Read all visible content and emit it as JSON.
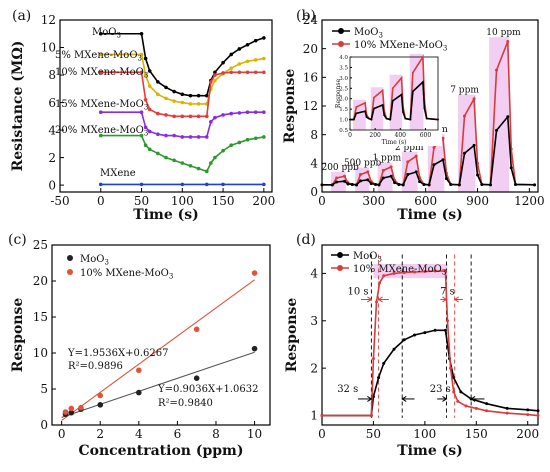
{
  "chart_data": [
    {
      "panel": "(a)",
      "type": "line",
      "xlabel": "Time (s)",
      "ylabel": "Resistance (MΩ)",
      "xlim": [
        -50,
        210
      ],
      "ylim": [
        -0.5,
        12
      ],
      "xticks": [
        -50,
        0,
        50,
        100,
        150,
        200
      ],
      "yticks": [
        0,
        2,
        4,
        6,
        8,
        10,
        12
      ],
      "annotations": [
        "MoO3",
        "5% MXene-MoO3",
        "10% MXene-MoO3",
        "15% MXene-MoO3",
        "20% MXene-MoO3",
        "MXene"
      ],
      "series": [
        {
          "name": "MoO3",
          "color": "#000000",
          "x": [
            0,
            50,
            55,
            60,
            70,
            80,
            90,
            100,
            110,
            120,
            130,
            135,
            140,
            150,
            160,
            170,
            180,
            190,
            200
          ],
          "y": [
            11,
            11,
            9.2,
            8.3,
            7.5,
            7.1,
            6.8,
            6.6,
            6.5,
            6.5,
            6.5,
            7.6,
            8.2,
            8.9,
            9.5,
            9.9,
            10.2,
            10.5,
            10.7
          ]
        },
        {
          "name": "5% MXene-MoO3",
          "color": "#d9b400",
          "x": [
            0,
            50,
            55,
            60,
            70,
            80,
            90,
            100,
            110,
            120,
            130,
            135,
            140,
            150,
            160,
            170,
            180,
            190,
            200
          ],
          "y": [
            9.5,
            9.5,
            8.0,
            7.2,
            6.6,
            6.3,
            6.1,
            6.0,
            5.9,
            5.9,
            5.9,
            7.0,
            7.6,
            8.1,
            8.5,
            8.8,
            9.0,
            9.1,
            9.2
          ]
        },
        {
          "name": "10% MXene-MoO3",
          "color": "#e53b3b",
          "x": [
            0,
            50,
            55,
            60,
            70,
            80,
            90,
            100,
            110,
            120,
            130,
            135,
            140,
            150,
            160,
            170,
            180,
            190,
            200
          ],
          "y": [
            8.2,
            8.2,
            6.2,
            5.5,
            5.2,
            5.1,
            5.0,
            5.0,
            5.0,
            5.0,
            5.0,
            7.5,
            8.0,
            8.15,
            8.2,
            8.2,
            8.2,
            8.2,
            8.2
          ]
        },
        {
          "name": "15% MXene-MoO3",
          "color": "#8a2be2",
          "x": [
            0,
            50,
            55,
            60,
            70,
            80,
            90,
            100,
            110,
            120,
            130,
            135,
            140,
            150,
            160,
            170,
            180,
            190,
            200
          ],
          "y": [
            5.3,
            5.3,
            4.2,
            3.9,
            3.7,
            3.6,
            3.6,
            3.5,
            3.5,
            3.5,
            3.5,
            4.6,
            4.9,
            5.1,
            5.2,
            5.25,
            5.3,
            5.3,
            5.3
          ]
        },
        {
          "name": "20% MXene-MoO3",
          "color": "#2b9a2b",
          "x": [
            0,
            50,
            55,
            60,
            70,
            80,
            90,
            100,
            110,
            120,
            130,
            135,
            140,
            150,
            160,
            170,
            180,
            190,
            200
          ],
          "y": [
            3.6,
            3.6,
            2.9,
            2.6,
            2.3,
            2.0,
            1.8,
            1.6,
            1.4,
            1.2,
            1.0,
            1.6,
            2.0,
            2.5,
            2.9,
            3.1,
            3.3,
            3.4,
            3.5
          ]
        },
        {
          "name": "MXene",
          "color": "#1f3fd6",
          "x": [
            0,
            50,
            100,
            130,
            150,
            200
          ],
          "y": [
            0.05,
            0.05,
            0.05,
            0.05,
            0.05,
            0.05
          ]
        }
      ]
    },
    {
      "panel": "(b)",
      "type": "line",
      "xlabel": "Time (s)",
      "ylabel": "Response",
      "xlim": [
        0,
        1250
      ],
      "ylim": [
        0,
        24
      ],
      "xticks": [
        0,
        300,
        600,
        900,
        1200
      ],
      "yticks": [
        0,
        4,
        8,
        12,
        16,
        20,
        24
      ],
      "legend_placement": "top-left",
      "legend": [
        "MoO3",
        "10% MXene-MoO3"
      ],
      "pulse_labels": [
        {
          "label": "200 ppb",
          "x": 105
        },
        {
          "label": "500 ppb",
          "x": 235
        },
        {
          "label": "1 ppm",
          "x": 375
        },
        {
          "label": "2 ppm",
          "x": 505
        },
        {
          "label": "4 ppm",
          "x": 645
        },
        {
          "label": "7 ppm",
          "x": 825
        },
        {
          "label": "10 ppm",
          "x": 1050
        }
      ],
      "pulses": [
        {
          "start": 60,
          "end": 130,
          "moo3": 1.5,
          "mxene": 2.2
        },
        {
          "start": 200,
          "end": 265,
          "moo3": 1.7,
          "mxene": 2.8
        },
        {
          "start": 330,
          "end": 400,
          "moo3": 2.2,
          "mxene": 3.5
        },
        {
          "start": 470,
          "end": 545,
          "moo3": 2.8,
          "mxene": 5.0
        },
        {
          "start": 620,
          "end": 700,
          "moo3": 4.5,
          "mxene": 7.5
        },
        {
          "start": 795,
          "end": 880,
          "moo3": 6.5,
          "mxene": 13.0
        },
        {
          "start": 975,
          "end": 1075,
          "moo3": 10.5,
          "mxene": 21.0
        }
      ],
      "inset": {
        "xlabel": "Time (s)",
        "ylabel": "Response",
        "xlim": [
          0,
          700
        ],
        "ylim": [
          0.5,
          4.0
        ],
        "xticks": [
          0,
          200,
          400,
          600
        ],
        "yticks": [
          0.5,
          1.0,
          1.5,
          2.0,
          2.5,
          3.0,
          3.5,
          4.0
        ],
        "xticklabels": [
          "0",
          "200",
          "400",
          "600"
        ],
        "yticklabels": [
          "0.5",
          "1.0",
          "1.5",
          "2.0",
          "2.5",
          "3.0",
          "3.5",
          "4.0"
        ],
        "pulses": [
          {
            "start": 30,
            "end": 120,
            "moo3": 1.4,
            "mxene": 1.8
          },
          {
            "start": 170,
            "end": 260,
            "moo3": 1.7,
            "mxene": 2.4
          },
          {
            "start": 320,
            "end": 410,
            "moo3": 2.2,
            "mxene": 3.0
          },
          {
            "start": 480,
            "end": 580,
            "moo3": 2.8,
            "mxene": 4.0
          }
        ]
      }
    },
    {
      "panel": "(c)",
      "type": "scatter",
      "xlabel": "Concentration (ppm)",
      "ylabel": "Response",
      "xlim": [
        -0.5,
        10.8
      ],
      "ylim": [
        0,
        25
      ],
      "xticks": [
        0,
        2,
        4,
        6,
        8,
        10
      ],
      "yticks": [
        0,
        5,
        10,
        15,
        20,
        25
      ],
      "legend_placement": "top-left",
      "series": [
        {
          "name": "MoO3",
          "color": "#222222",
          "x": [
            0.2,
            0.5,
            1,
            2,
            4,
            7,
            10
          ],
          "y": [
            1.5,
            1.7,
            2.2,
            2.8,
            4.5,
            6.5,
            10.6
          ]
        },
        {
          "name": "10% MXene-MoO3",
          "color": "#e0533b",
          "x": [
            0.2,
            0.5,
            1,
            2,
            4,
            7,
            10
          ],
          "y": [
            1.8,
            2.3,
            2.4,
            4.1,
            7.6,
            13.3,
            21.1
          ]
        }
      ],
      "fits": [
        {
          "equation": "Y=1.9536X+0.6267",
          "r2": "R²=0.9896",
          "slope": 1.9536,
          "intercept": 0.6267,
          "color": "#e0533b"
        },
        {
          "equation": "Y=0.9036X+1.0632",
          "r2": "R²=0.9840",
          "slope": 0.9036,
          "intercept": 1.0632,
          "color": "#555555"
        }
      ]
    },
    {
      "panel": "(d)",
      "type": "line",
      "xlabel": "Time (s)",
      "ylabel": "Response",
      "xlim": [
        0,
        210
      ],
      "ylim": [
        0.8,
        4.6
      ],
      "xticks": [
        0,
        50,
        100,
        150,
        200
      ],
      "yticks": [
        1,
        2,
        3,
        4
      ],
      "legend_placement": "top-left",
      "annotations": [
        "10 s",
        "7 s",
        "32 s",
        "23 s"
      ],
      "series": [
        {
          "name": "MoO3",
          "color": "#000000",
          "x": [
            0,
            48,
            50,
            55,
            60,
            70,
            80,
            90,
            100,
            110,
            120,
            124,
            128,
            135,
            145,
            160,
            180,
            200,
            210
          ],
          "y": [
            1.0,
            1.0,
            1.4,
            1.8,
            2.1,
            2.4,
            2.6,
            2.7,
            2.75,
            2.8,
            2.8,
            2.2,
            1.8,
            1.5,
            1.35,
            1.25,
            1.15,
            1.12,
            1.1
          ]
        },
        {
          "name": "10% MXene-MoO3",
          "color": "#d93b3b",
          "x": [
            0,
            48,
            50,
            53,
            56,
            60,
            70,
            80,
            90,
            100,
            110,
            120,
            122,
            125,
            128,
            132,
            140,
            150,
            160,
            180,
            200,
            210
          ],
          "y": [
            1.0,
            1.0,
            2.2,
            3.4,
            3.8,
            3.95,
            4.0,
            4.02,
            4.03,
            4.04,
            4.05,
            4.05,
            3.0,
            2.0,
            1.5,
            1.3,
            1.2,
            1.15,
            1.1,
            1.05,
            1.02,
            1.0
          ]
        }
      ]
    }
  ],
  "theme": {
    "moo3": "#000000",
    "mxene_moo3": "#d93b3b",
    "shade": "#e7a8e7",
    "axis": "#000000"
  }
}
